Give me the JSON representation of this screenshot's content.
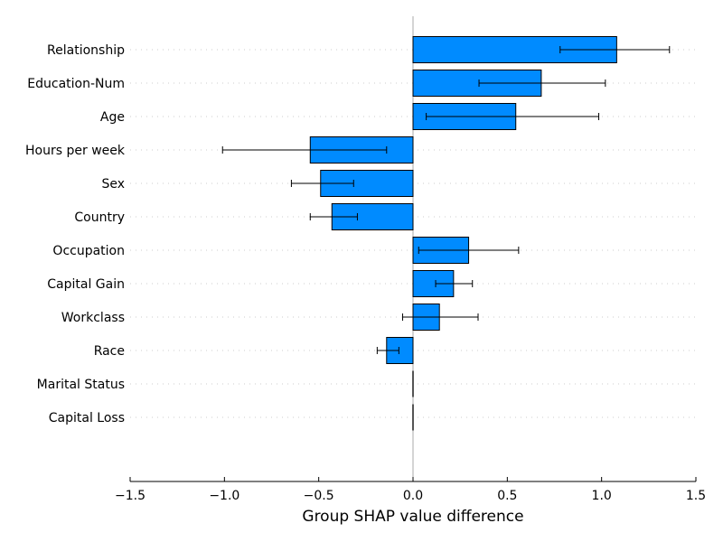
{
  "chart_data": {
    "type": "bar",
    "orientation": "horizontal",
    "categories": [
      "Relationship",
      "Education-Num",
      "Age",
      "Hours per week",
      "Sex",
      "Country",
      "Occupation",
      "Capital Gain",
      "Workclass",
      "Race",
      "Marital Status",
      "Capital Loss"
    ],
    "values": [
      1.08,
      0.68,
      0.545,
      -0.545,
      -0.49,
      -0.43,
      0.295,
      0.215,
      0.14,
      -0.14,
      0.0,
      0.0
    ],
    "error_low": [
      0.78,
      0.35,
      0.07,
      -1.01,
      -0.645,
      -0.545,
      0.03,
      0.12,
      -0.055,
      -0.19,
      0.0,
      0.0
    ],
    "error_high": [
      1.36,
      1.02,
      0.985,
      -0.14,
      -0.315,
      -0.295,
      0.56,
      0.315,
      0.345,
      -0.075,
      0.0,
      0.0
    ],
    "xlabel": "Group SHAP value difference",
    "xlim": [
      -1.5,
      1.5
    ],
    "xticks": [
      -1.5,
      -1.0,
      -0.5,
      0.0,
      0.5,
      1.0,
      1.5
    ],
    "xtick_labels": [
      "−1.5",
      "−1.0",
      "−0.5",
      "0.0",
      "0.5",
      "1.0",
      "1.5"
    ],
    "bar_color": "#008bff",
    "zero_line_color": "#aaaaaa",
    "grid": "dotted-horizontal"
  }
}
